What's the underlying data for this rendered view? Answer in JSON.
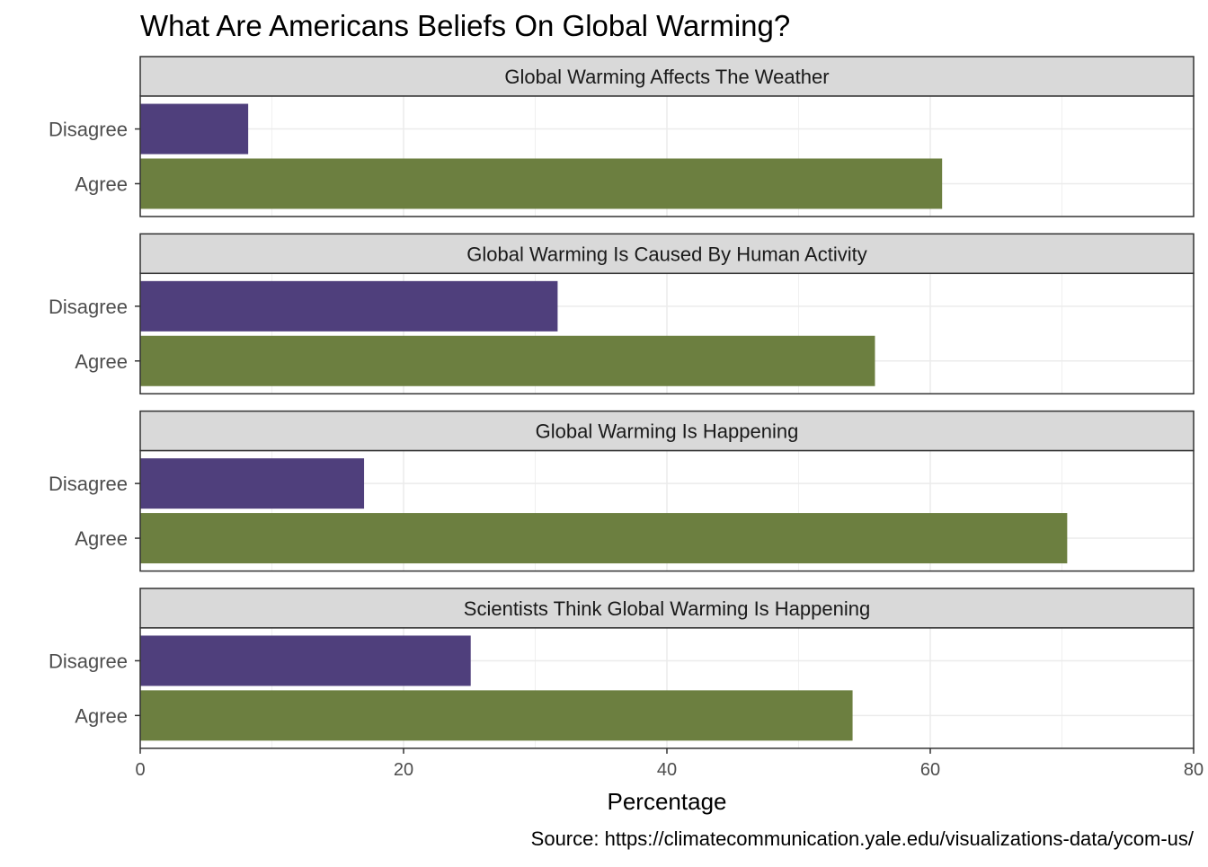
{
  "chart_data": {
    "type": "bar",
    "orientation": "horizontal",
    "faceted": true,
    "title": "What Are Americans Beliefs On Global Warming?",
    "xlabel": "Percentage",
    "ylabel": "",
    "xlim": [
      0,
      80
    ],
    "xticks": [
      0,
      20,
      40,
      60,
      80
    ],
    "categories": [
      "Disagree",
      "Agree"
    ],
    "colors": {
      "Disagree": "#4f3f7c",
      "Agree": "#6c7f40"
    },
    "grid": true,
    "legend": "none",
    "caption": "Source: https://climatecommunication.yale.edu/visualizations-data/ycom-us/",
    "panels": [
      {
        "name": "Global Warming Affects The Weather",
        "values": {
          "Disagree": 8.2,
          "Agree": 60.9
        }
      },
      {
        "name": "Global Warming Is Caused By Human Activity",
        "values": {
          "Disagree": 31.7,
          "Agree": 55.8
        }
      },
      {
        "name": "Global Warming Is Happening",
        "values": {
          "Disagree": 17.0,
          "Agree": 70.4
        }
      },
      {
        "name": "Scientists Think Global Warming Is Happening",
        "values": {
          "Disagree": 25.1,
          "Agree": 54.1
        }
      }
    ]
  }
}
